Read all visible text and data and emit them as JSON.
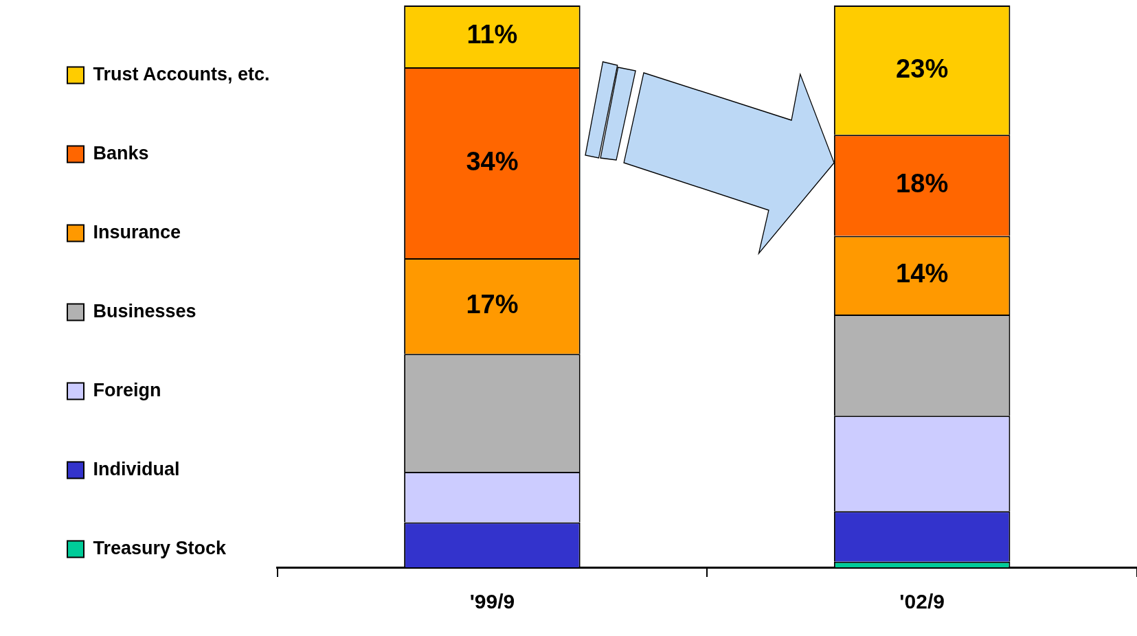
{
  "chart_data": {
    "type": "bar",
    "stacked": true,
    "categories": [
      "'99/9",
      "'02/9"
    ],
    "ylim": [
      0,
      100
    ],
    "tick_labels": "x",
    "legend": "left",
    "grid": false,
    "series": [
      {
        "name": "Treasury Stock",
        "color": "#00cc99",
        "values": [
          0,
          1
        ]
      },
      {
        "name": "Individual",
        "color": "#3333cc",
        "values": [
          8,
          9
        ]
      },
      {
        "name": "Foreign",
        "color": "#ccccff",
        "values": [
          9,
          17
        ]
      },
      {
        "name": "Businesses",
        "color": "#b2b2b2",
        "values": [
          21,
          18
        ]
      },
      {
        "name": "Insurance",
        "color": "#ff9900",
        "values": [
          17,
          14
        ],
        "value_labels": [
          "17%",
          "14%"
        ]
      },
      {
        "name": "Banks",
        "color": "#ff6600",
        "values": [
          34,
          18
        ],
        "value_labels": [
          "34%",
          "18%"
        ]
      },
      {
        "name": "Trust Accounts, etc.",
        "color": "#ffcc00",
        "values": [
          11,
          23
        ],
        "value_labels": [
          "11%",
          "23%"
        ]
      }
    ]
  }
}
